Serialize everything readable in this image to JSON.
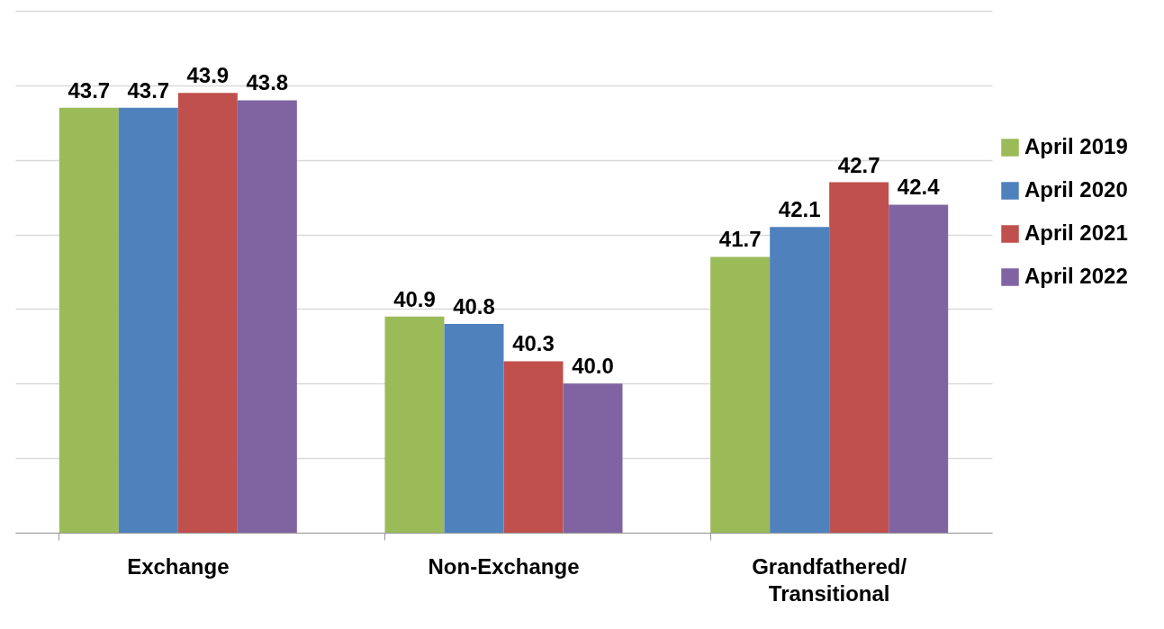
{
  "chart_data": {
    "type": "bar",
    "categories": [
      "Exchange",
      "Non-Exchange",
      "Grandfathered/ Transitional"
    ],
    "series": [
      {
        "name": "April 2019",
        "color": "#9bbb59",
        "values": [
          43.7,
          40.9,
          41.7
        ],
        "value_labels": [
          "43.7",
          "40.9",
          "41.7"
        ]
      },
      {
        "name": "April 2020",
        "color": "#4f81bd",
        "values": [
          43.7,
          40.8,
          42.1
        ],
        "value_labels": [
          "43.7",
          "40.8",
          "42.1"
        ]
      },
      {
        "name": "April 2021",
        "color": "#c0504d",
        "values": [
          43.9,
          40.3,
          42.7
        ],
        "value_labels": [
          "43.9",
          "40.3",
          "42.7"
        ]
      },
      {
        "name": "April 2022",
        "color": "#8064a2",
        "values": [
          43.8,
          40.0,
          42.4
        ],
        "value_labels": [
          "43.8",
          "40.0",
          "42.4"
        ]
      }
    ],
    "ylim": [
      38,
      45
    ],
    "yticks": [
      {
        "value": 38,
        "label": null
      },
      {
        "value": 39,
        "label": null
      },
      {
        "value": 40,
        "label": null
      },
      {
        "value": 41,
        "label": null
      },
      {
        "value": 42,
        "label": null
      },
      {
        "value": 43,
        "label": null
      },
      {
        "value": 44,
        "label": null
      },
      {
        "value": 45,
        "label": null
      }
    ],
    "grid": true,
    "tick_labels": "x",
    "legend": "right"
  }
}
